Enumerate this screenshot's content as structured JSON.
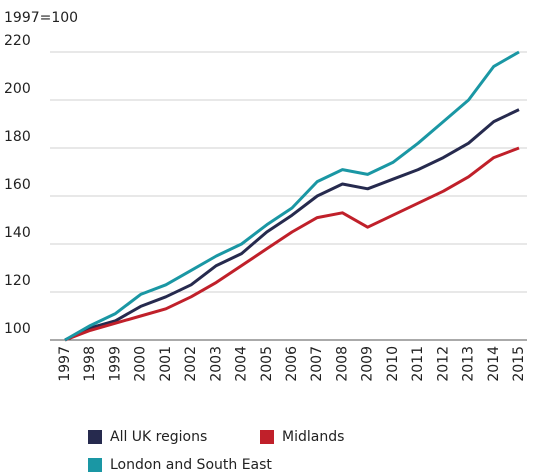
{
  "chart_data": {
    "type": "line",
    "subtitle": "1997=100",
    "categories": [
      "1997",
      "1998",
      "1999",
      "2000",
      "2001",
      "2002",
      "2003",
      "2004",
      "2005",
      "2006",
      "2007",
      "2008",
      "2009",
      "2010",
      "2011",
      "2012",
      "2013",
      "2014",
      "2015"
    ],
    "series": [
      {
        "name": "All UK regions",
        "color": "#262a4e",
        "values": [
          100,
          105,
          108,
          114,
          118,
          123,
          131,
          136,
          145,
          152,
          160,
          165,
          163,
          167,
          171,
          176,
          182,
          191,
          196
        ]
      },
      {
        "name": "Midlands",
        "color": "#c0202a",
        "values": [
          100,
          104,
          107,
          110,
          113,
          118,
          124,
          131,
          138,
          145,
          151,
          153,
          147,
          152,
          157,
          162,
          168,
          176,
          180
        ]
      },
      {
        "name": "London and South East",
        "color": "#1a97a4",
        "values": [
          100,
          106,
          111,
          119,
          123,
          129,
          135,
          140,
          148,
          155,
          166,
          171,
          169,
          174,
          182,
          191,
          200,
          214,
          220
        ]
      }
    ],
    "ylim": [
      100,
      220
    ],
    "yticks": [
      100,
      120,
      140,
      160,
      180,
      200,
      220
    ],
    "grid": true
  }
}
